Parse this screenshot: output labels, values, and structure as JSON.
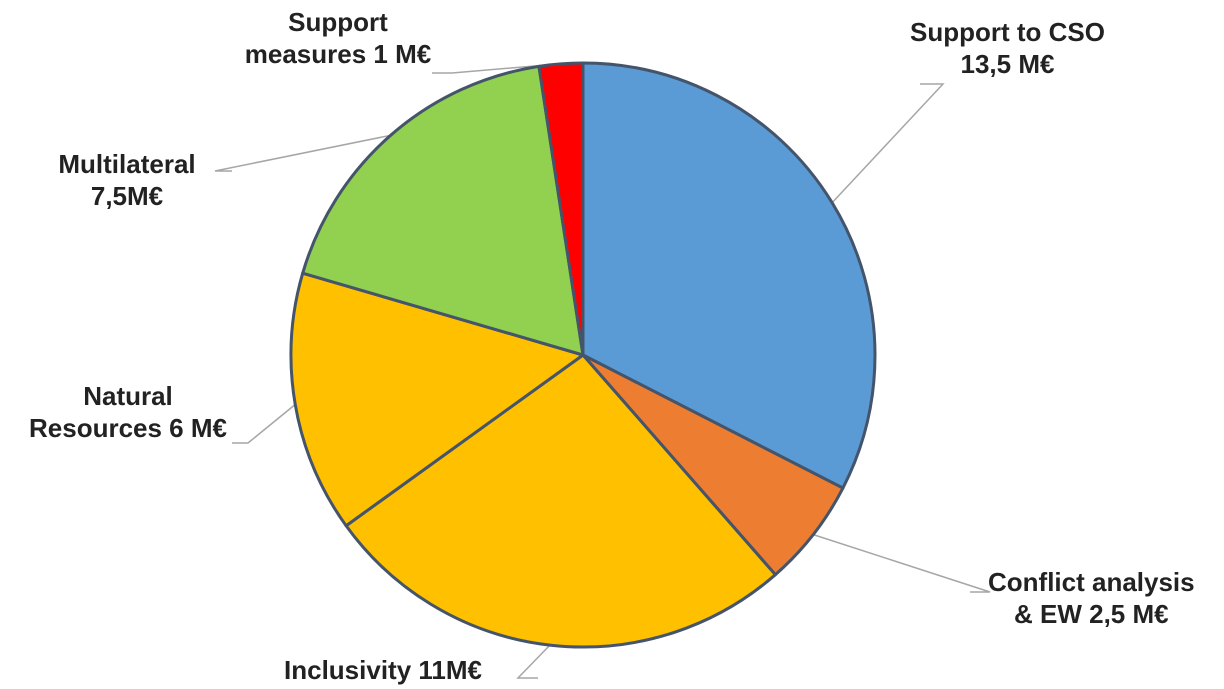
{
  "chart_data": {
    "type": "pie",
    "start_angle_deg": 0,
    "direction": "clockwise",
    "slices": [
      {
        "label_lines": [
          "Support to CSO",
          "13,5 M€"
        ],
        "value": 13.5,
        "color": "#5B9BD5"
      },
      {
        "label_lines": [
          "Conflict analysis",
          "& EW 2,5 M€"
        ],
        "value": 2.5,
        "color": "#ED7D31"
      },
      {
        "label_lines": [
          "Inclusivity 11M€"
        ],
        "value": 11,
        "color": "#FFC000"
      },
      {
        "label_lines": [
          "Natural",
          "Resources  6 M€"
        ],
        "value": 6,
        "color": "#FFC000"
      },
      {
        "label_lines": [
          "Multilateral",
          "7,5M€"
        ],
        "value": 7.5,
        "color": "#92D050"
      },
      {
        "label_lines": [
          "Support",
          "measures 1 M€"
        ],
        "value": 1,
        "color": "#FF0000"
      }
    ],
    "slice_border_color": "#44546A",
    "leader_line_color": "#A6A6A6"
  }
}
